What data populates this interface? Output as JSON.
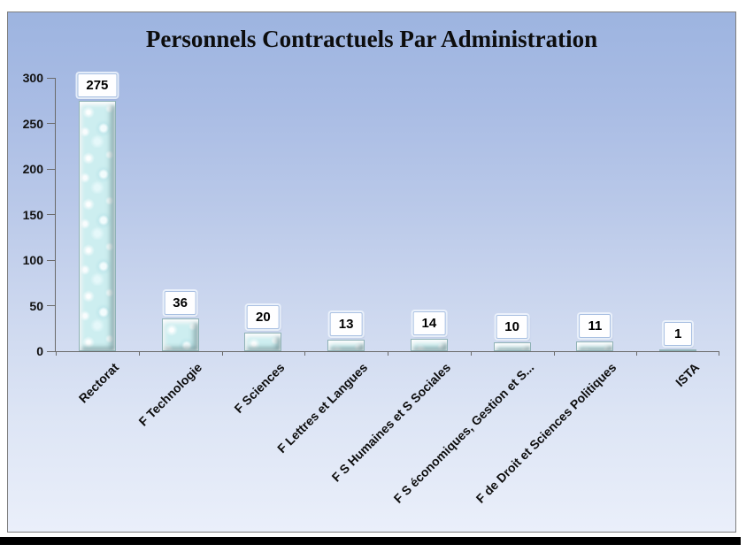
{
  "chart": {
    "frame_border_color": "#7f7f7f",
    "background_gradient": [
      "#9db4e0",
      "#cdd8ef",
      "#eaeffa"
    ],
    "axis_color": "#6a6a6a",
    "bar_face_color": "#cdeef0",
    "bar_edge_color": "#8fb2b6",
    "bar_texture": "water-droplets",
    "value_label_box_fill": "#fefeff",
    "value_label_box_border": "#a9c0e2",
    "text_color": "#000000",
    "bottom_rule_color": "#000000"
  },
  "chart_data": {
    "type": "bar",
    "title": "Personnels Contractuels Par Administration",
    "categories": [
      "Rectorat",
      "F Technologie",
      "F Sciences",
      "F Lettres et Langues",
      "F S Humaines et S Sociales",
      "F S économiques, Gestion et S...",
      "F de Droit et Sciences Politiques",
      "ISTA"
    ],
    "values": [
      275,
      36,
      20,
      13,
      14,
      10,
      11,
      1
    ],
    "data_labels": [
      "275",
      "36",
      "20",
      "13",
      "14",
      "10",
      "11",
      "1"
    ],
    "xlabel": "",
    "ylabel": "",
    "ylim": [
      0,
      300
    ],
    "yticks": [
      0,
      50,
      100,
      150,
      200,
      250,
      300
    ],
    "grid": false,
    "legend": false,
    "category_label_rotation_deg": 45
  }
}
